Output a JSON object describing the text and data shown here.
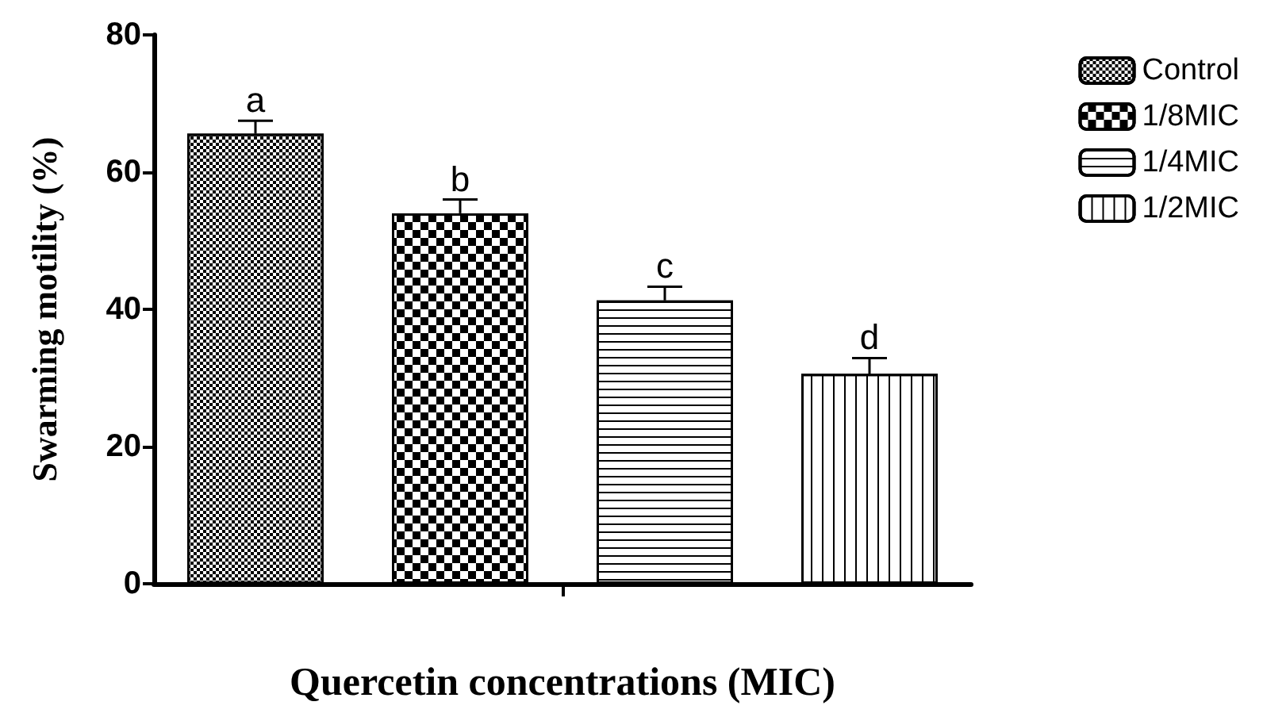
{
  "chart_data": {
    "type": "bar",
    "xlabel": "Quercetin concentrations (MIC)",
    "ylabel": "Swarming motility (%)",
    "categories": [
      null
    ],
    "series": [
      {
        "name": "Control",
        "color": "#000000",
        "values": [
          65.6
        ],
        "errors": [
          [
            65.6,
            67.5
          ]
        ]
      },
      {
        "name": "1/8MIC",
        "color": "#000000",
        "values": [
          54.0
        ],
        "errors": [
          [
            54.0,
            56.0
          ]
        ]
      },
      {
        "name": "1/4MIC",
        "color": "#000000",
        "values": [
          41.3
        ],
        "errors": [
          [
            41.3,
            43.3
          ]
        ]
      },
      {
        "name": "1/2MIC",
        "color": "#000000",
        "values": [
          30.6
        ],
        "errors": [
          [
            30.6,
            32.9
          ]
        ]
      }
    ],
    "annotations": [
      "a",
      "b",
      "c",
      "d"
    ],
    "ylim": [
      0,
      80
    ],
    "yticks": [
      0,
      20,
      40,
      60,
      80
    ],
    "grid": false,
    "legend": "top right"
  }
}
